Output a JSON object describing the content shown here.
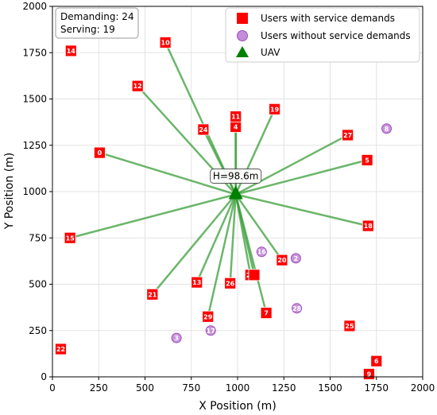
{
  "chart_data": {
    "type": "scatter",
    "xlabel": "X Position (m)",
    "ylabel": "Y Position (m)",
    "xlim": [
      0,
      2000
    ],
    "ylim": [
      0,
      2000
    ],
    "xticks": [
      0,
      250,
      500,
      750,
      1000,
      1250,
      1500,
      1750,
      2000
    ],
    "yticks": [
      0,
      250,
      500,
      750,
      1000,
      1250,
      1500,
      1750,
      2000
    ],
    "grid": true,
    "legend_position": "top-right",
    "legend": [
      {
        "name": "Users with service demands",
        "marker": "square",
        "color": "#ff0000"
      },
      {
        "name": "Users without service demands",
        "marker": "circle",
        "color": "#b266cc"
      },
      {
        "name": "UAV",
        "marker": "triangle",
        "color": "#008000"
      }
    ],
    "info": {
      "demanding": "Demanding: 24",
      "serving": "Serving: 19"
    },
    "uav": {
      "x": 990,
      "y": 985,
      "label": "H=98.6m"
    },
    "demand_users": [
      {
        "id": "0",
        "x": 255,
        "y": 1210,
        "served": true
      },
      {
        "id": "4",
        "x": 990,
        "y": 1350,
        "served": true
      },
      {
        "id": "5",
        "x": 1700,
        "y": 1170,
        "served": true
      },
      {
        "id": "6",
        "x": 1750,
        "y": 85,
        "served": false
      },
      {
        "id": "7",
        "x": 1155,
        "y": 345,
        "served": true
      },
      {
        "id": "9",
        "x": 1710,
        "y": 15,
        "served": false
      },
      {
        "id": "10",
        "x": 610,
        "y": 1805,
        "served": true
      },
      {
        "id": "11",
        "x": 990,
        "y": 1405,
        "served": true
      },
      {
        "id": "12",
        "x": 460,
        "y": 1570,
        "served": true
      },
      {
        "id": "13",
        "x": 780,
        "y": 510,
        "served": true
      },
      {
        "id": "14",
        "x": 100,
        "y": 1760,
        "served": false
      },
      {
        "id": "15",
        "x": 95,
        "y": 750,
        "served": true
      },
      {
        "id": "18",
        "x": 1705,
        "y": 815,
        "served": true
      },
      {
        "id": "19",
        "x": 1200,
        "y": 1445,
        "served": true
      },
      {
        "id": "20",
        "x": 1240,
        "y": 630,
        "served": true
      },
      {
        "id": "21",
        "x": 540,
        "y": 445,
        "served": true
      },
      {
        "id": "22",
        "x": 45,
        "y": 150,
        "served": false
      },
      {
        "id": "23",
        "x": 1070,
        "y": 550,
        "served": true
      },
      {
        "id": "24",
        "x": 815,
        "y": 1335,
        "served": true
      },
      {
        "id": "25",
        "x": 1605,
        "y": 275,
        "served": false
      },
      {
        "id": "26",
        "x": 960,
        "y": 505,
        "served": true
      },
      {
        "id": "27",
        "x": 1595,
        "y": 1305,
        "served": true
      },
      {
        "id": "29",
        "x": 840,
        "y": 325,
        "served": true
      },
      {
        "id": "",
        "x": 1090,
        "y": 550,
        "served": true
      }
    ],
    "non_demand_users": [
      {
        "id": "2",
        "x": 1315,
        "y": 640
      },
      {
        "id": "3",
        "x": 670,
        "y": 210
      },
      {
        "id": "8",
        "x": 1805,
        "y": 1340
      },
      {
        "id": "16",
        "x": 1130,
        "y": 675
      },
      {
        "id": "17",
        "x": 855,
        "y": 250
      },
      {
        "id": "28",
        "x": 1320,
        "y": 370
      }
    ]
  }
}
